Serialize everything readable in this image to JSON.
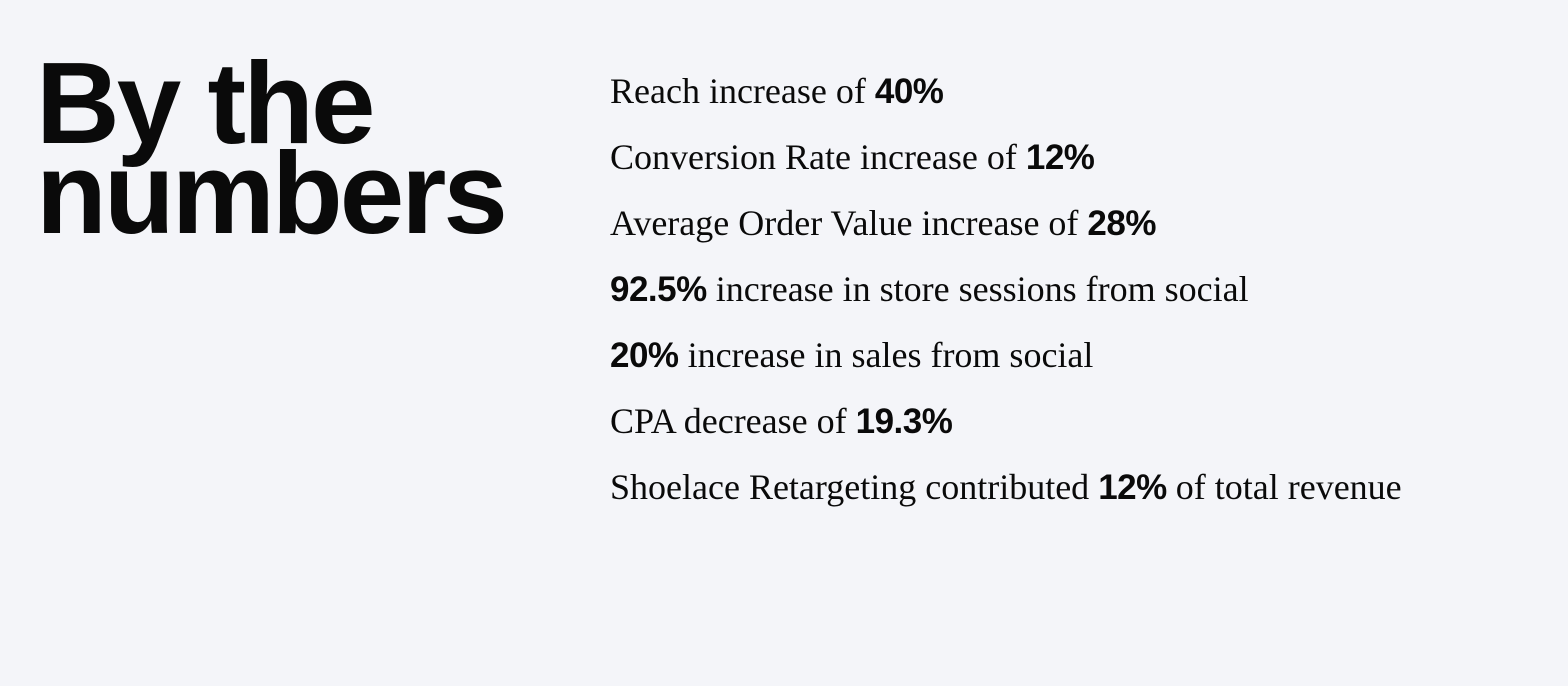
{
  "heading": "By the numbers",
  "items": [
    {
      "parts": [
        {
          "text": "Reach increase of"
        },
        {
          "stat": "40%"
        }
      ]
    },
    {
      "parts": [
        {
          "text": "Conversion Rate increase of"
        },
        {
          "stat": "12%"
        }
      ]
    },
    {
      "parts": [
        {
          "text": "Average Order Value increase of"
        },
        {
          "stat": "28%"
        }
      ]
    },
    {
      "parts": [
        {
          "stat": "92.5%"
        },
        {
          "text": "increase in store sessions from social"
        }
      ]
    },
    {
      "parts": [
        {
          "stat": "20%"
        },
        {
          "text": "increase in sales from social"
        }
      ]
    },
    {
      "parts": [
        {
          "text": "CPA decrease of"
        },
        {
          "stat": "19.3%"
        }
      ]
    },
    {
      "parts": [
        {
          "text": "Shoelace Retargeting contributed"
        },
        {
          "stat": "12%"
        },
        {
          "text": "of total revenue"
        }
      ]
    }
  ]
}
